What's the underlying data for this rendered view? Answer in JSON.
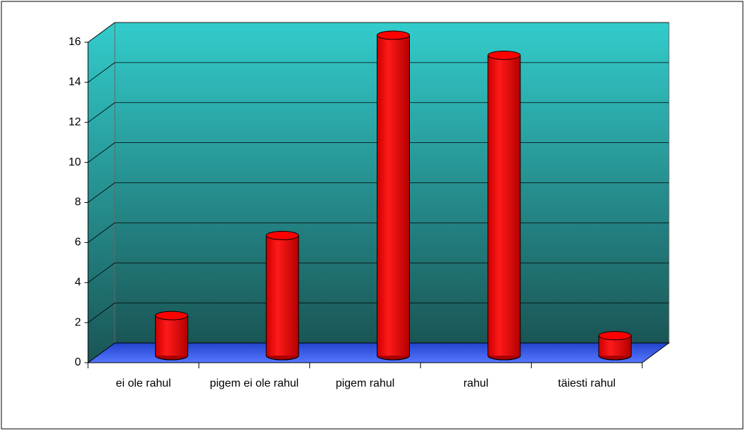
{
  "chart_data": {
    "type": "bar",
    "categories": [
      "ei ole rahul",
      "pigem ei ole rahul",
      "pigem rahul",
      "rahul",
      "täiesti rahul"
    ],
    "values": [
      2,
      6,
      16,
      15,
      1
    ],
    "color": "#ff0000",
    "ylim": [
      0,
      16
    ],
    "yticks": [
      0,
      2,
      4,
      6,
      8,
      10,
      12,
      14,
      16
    ],
    "grid": true
  }
}
